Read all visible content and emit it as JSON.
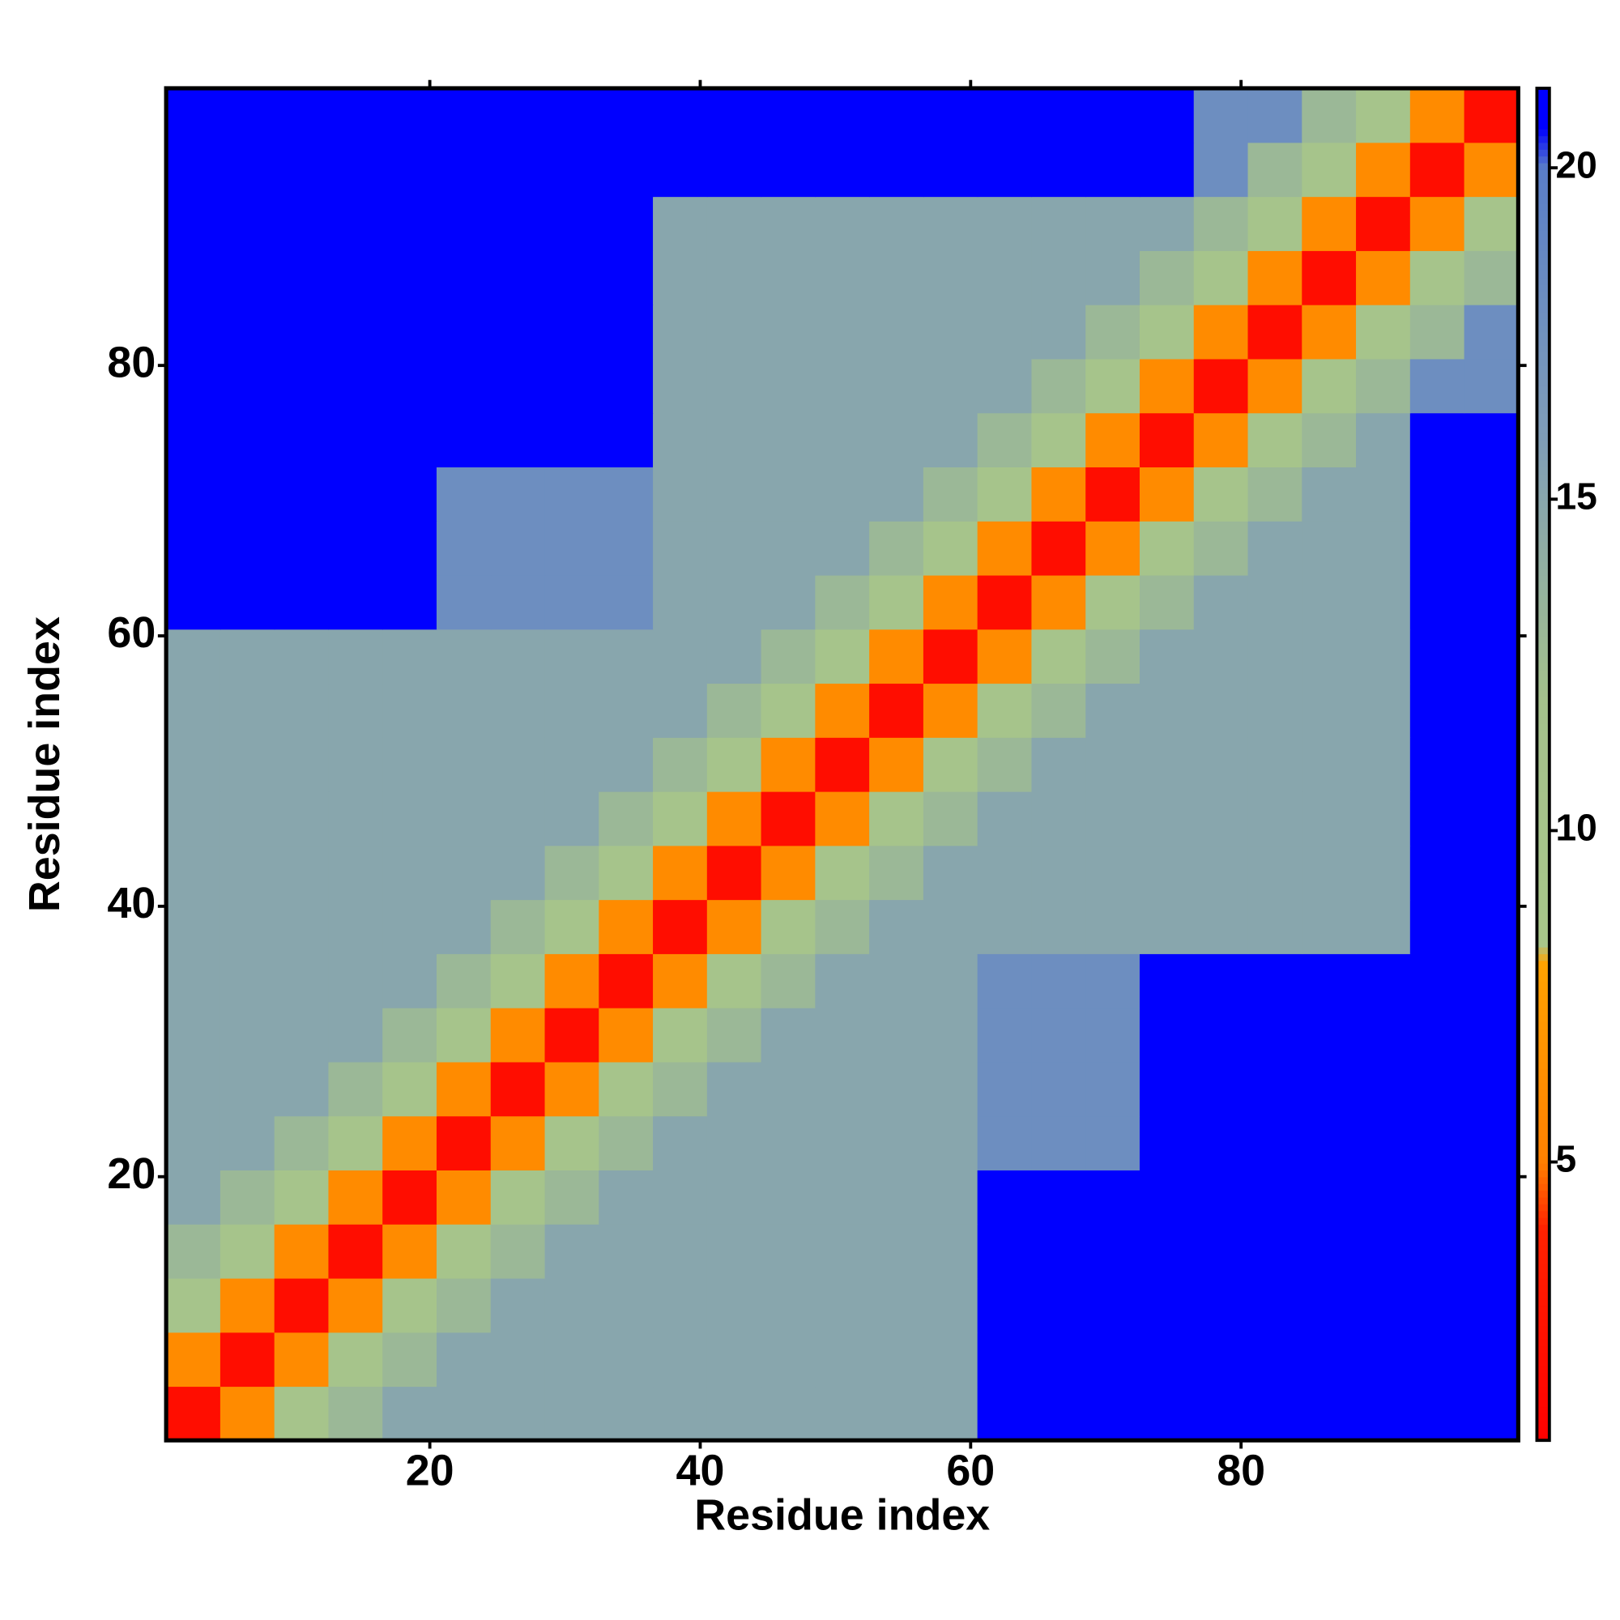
{
  "chart_data": {
    "type": "heatmap",
    "x_label": "Residue index",
    "y_label": "Residue index",
    "x": [
      2.5,
      6.5,
      10.5,
      14.5,
      18.5,
      22.5,
      26.5,
      30.5,
      34.5,
      38.5,
      42.5,
      46.5,
      50.5,
      54.5,
      58.5,
      62.5,
      66.5,
      70.5,
      74.5,
      78.5,
      82.5,
      86.5,
      90.5,
      94.5,
      98.5
    ],
    "y": [
      2.5,
      6.5,
      10.5,
      14.5,
      18.5,
      22.5,
      26.5,
      30.5,
      34.5,
      38.5,
      42.5,
      46.5,
      50.5,
      54.5,
      58.5,
      62.5,
      66.5,
      70.5,
      74.5,
      78.5,
      82.5,
      86.5,
      90.5,
      94.5,
      98.5
    ],
    "z": [
      [
        2,
        6,
        10,
        13,
        15,
        15,
        15,
        15,
        15,
        15,
        15,
        15,
        15,
        15,
        15,
        21,
        21,
        21,
        21,
        21,
        21,
        21,
        21,
        21,
        21
      ],
      [
        6,
        2,
        6,
        10,
        13,
        15,
        15,
        15,
        15,
        15,
        15,
        15,
        15,
        15,
        15,
        21,
        21,
        21,
        21,
        21,
        21,
        21,
        21,
        21,
        21
      ],
      [
        10,
        6,
        2,
        6,
        10,
        13,
        15,
        15,
        15,
        15,
        15,
        15,
        15,
        15,
        15,
        21,
        21,
        21,
        21,
        21,
        21,
        21,
        21,
        21,
        21
      ],
      [
        13,
        10,
        6,
        2,
        6,
        10,
        13,
        15,
        15,
        15,
        15,
        15,
        15,
        15,
        15,
        21,
        21,
        21,
        21,
        21,
        21,
        21,
        21,
        21,
        21
      ],
      [
        15,
        13,
        10,
        6,
        2,
        6,
        10,
        13,
        15,
        15,
        15,
        15,
        15,
        15,
        15,
        21,
        21,
        21,
        21,
        21,
        21,
        21,
        21,
        21,
        21
      ],
      [
        15,
        15,
        13,
        10,
        6,
        2,
        6,
        10,
        13,
        15,
        15,
        15,
        15,
        15,
        15,
        18,
        18,
        18,
        21,
        21,
        21,
        21,
        21,
        21,
        21
      ],
      [
        15,
        15,
        15,
        13,
        10,
        6,
        2,
        6,
        10,
        13,
        15,
        15,
        15,
        15,
        15,
        18,
        18,
        18,
        21,
        21,
        21,
        21,
        21,
        21,
        21
      ],
      [
        15,
        15,
        15,
        15,
        13,
        10,
        6,
        2,
        6,
        10,
        13,
        15,
        15,
        15,
        15,
        18,
        18,
        18,
        21,
        21,
        21,
        21,
        21,
        21,
        21
      ],
      [
        15,
        15,
        15,
        15,
        15,
        13,
        10,
        6,
        2,
        6,
        10,
        13,
        15,
        15,
        15,
        18,
        18,
        18,
        21,
        21,
        21,
        21,
        21,
        21,
        21
      ],
      [
        15,
        15,
        15,
        15,
        15,
        15,
        13,
        10,
        6,
        2,
        6,
        10,
        13,
        15,
        15,
        15,
        15,
        15,
        15,
        15,
        15,
        15,
        15,
        21,
        21
      ],
      [
        15,
        15,
        15,
        15,
        15,
        15,
        15,
        13,
        10,
        6,
        2,
        6,
        10,
        13,
        15,
        15,
        15,
        15,
        15,
        15,
        15,
        15,
        15,
        21,
        21
      ],
      [
        15,
        15,
        15,
        15,
        15,
        15,
        15,
        15,
        13,
        10,
        6,
        2,
        6,
        10,
        13,
        15,
        15,
        15,
        15,
        15,
        15,
        15,
        15,
        21,
        21
      ],
      [
        15,
        15,
        15,
        15,
        15,
        15,
        15,
        15,
        15,
        13,
        10,
        6,
        2,
        6,
        10,
        13,
        15,
        15,
        15,
        15,
        15,
        15,
        15,
        21,
        21
      ],
      [
        15,
        15,
        15,
        15,
        15,
        15,
        15,
        15,
        15,
        15,
        13,
        10,
        6,
        2,
        6,
        10,
        13,
        15,
        15,
        15,
        15,
        15,
        15,
        21,
        21
      ],
      [
        15,
        15,
        15,
        15,
        15,
        15,
        15,
        15,
        15,
        15,
        15,
        13,
        10,
        6,
        2,
        6,
        10,
        13,
        15,
        15,
        15,
        15,
        15,
        21,
        21
      ],
      [
        21,
        21,
        21,
        21,
        21,
        18,
        18,
        18,
        18,
        15,
        15,
        15,
        13,
        10,
        6,
        2,
        6,
        10,
        13,
        15,
        15,
        15,
        15,
        21,
        21
      ],
      [
        21,
        21,
        21,
        21,
        21,
        18,
        18,
        18,
        18,
        15,
        15,
        15,
        15,
        13,
        10,
        6,
        2,
        6,
        10,
        13,
        15,
        15,
        15,
        21,
        21
      ],
      [
        21,
        21,
        21,
        21,
        21,
        18,
        18,
        18,
        18,
        15,
        15,
        15,
        15,
        15,
        13,
        10,
        6,
        2,
        6,
        10,
        13,
        15,
        15,
        21,
        21
      ],
      [
        21,
        21,
        21,
        21,
        21,
        21,
        21,
        21,
        21,
        15,
        15,
        15,
        15,
        15,
        15,
        13,
        10,
        6,
        2,
        6,
        10,
        13,
        15,
        21,
        21
      ],
      [
        21,
        21,
        21,
        21,
        21,
        21,
        21,
        21,
        21,
        15,
        15,
        15,
        15,
        15,
        15,
        15,
        13,
        10,
        6,
        2,
        6,
        10,
        13,
        18,
        18
      ],
      [
        21,
        21,
        21,
        21,
        21,
        21,
        21,
        21,
        21,
        15,
        15,
        15,
        15,
        15,
        15,
        15,
        15,
        13,
        10,
        6,
        2,
        6,
        10,
        13,
        18
      ],
      [
        21,
        21,
        21,
        21,
        21,
        21,
        21,
        21,
        21,
        15,
        15,
        15,
        15,
        15,
        15,
        15,
        15,
        15,
        13,
        10,
        6,
        2,
        6,
        10,
        13
      ],
      [
        21,
        21,
        21,
        21,
        21,
        21,
        21,
        21,
        21,
        15,
        15,
        15,
        15,
        15,
        15,
        15,
        15,
        15,
        15,
        13,
        10,
        6,
        2,
        6,
        10
      ],
      [
        21,
        21,
        21,
        21,
        21,
        21,
        21,
        21,
        21,
        21,
        21,
        21,
        21,
        21,
        21,
        21,
        21,
        21,
        21,
        18,
        13,
        10,
        6,
        2,
        6
      ],
      [
        21,
        21,
        21,
        21,
        21,
        21,
        21,
        21,
        21,
        21,
        21,
        21,
        21,
        21,
        21,
        21,
        21,
        21,
        21,
        18,
        18,
        13,
        10,
        6,
        2
      ]
    ],
    "xlim": [
      0.5,
      100.5
    ],
    "ylim": [
      0.5,
      100.5
    ],
    "xticks": [
      20,
      40,
      60,
      80
    ],
    "yticks": [
      20,
      40,
      60,
      80
    ],
    "clim": [
      0.8,
      21.2
    ],
    "colorbar_ticks": [
      5,
      10,
      15,
      20
    ],
    "colorscale": [
      [
        0.8,
        "#ff0000"
      ],
      [
        4,
        "#ff2200"
      ],
      [
        5,
        "#ff8000"
      ],
      [
        8,
        "#ffa200"
      ],
      [
        8.3,
        "#a8c68a"
      ],
      [
        12,
        "#a4c18c"
      ],
      [
        16,
        "#7f9db8"
      ],
      [
        20,
        "#5a7ec8"
      ],
      [
        20.6,
        "#0000ff"
      ],
      [
        21.2,
        "#0000ff"
      ]
    ]
  }
}
